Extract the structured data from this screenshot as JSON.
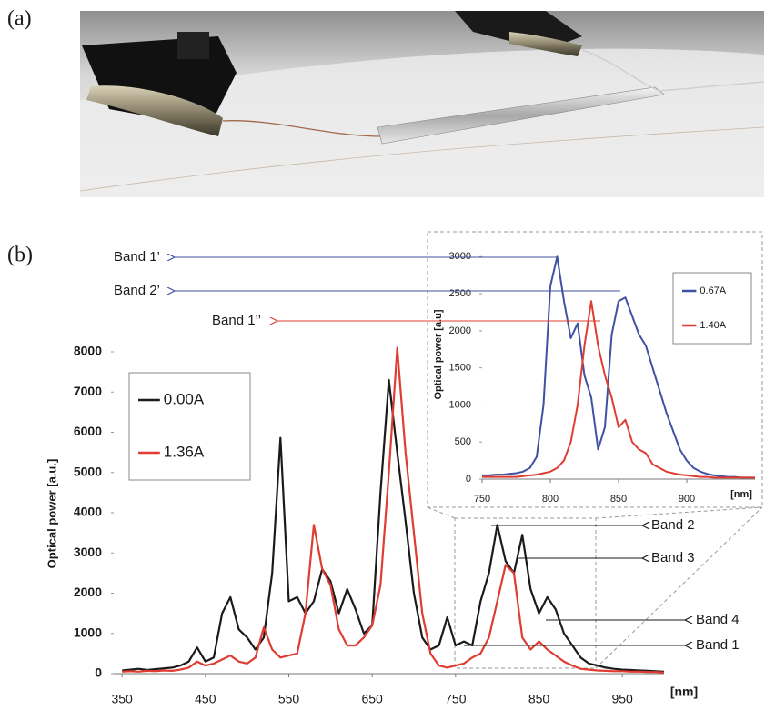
{
  "panels": {
    "a": "(a)",
    "b": "(b)"
  },
  "chart_data": [
    {
      "type": "line",
      "ylabel": "Optical power [a.u.]",
      "xlabel": "[nm]",
      "x": [
        350,
        360,
        370,
        380,
        390,
        400,
        410,
        420,
        430,
        440,
        450,
        460,
        470,
        480,
        490,
        500,
        510,
        520,
        530,
        540,
        550,
        560,
        570,
        580,
        590,
        600,
        610,
        620,
        630,
        640,
        650,
        660,
        670,
        680,
        690,
        700,
        710,
        720,
        730,
        740,
        750,
        760,
        770,
        780,
        790,
        800,
        810,
        820,
        830,
        840,
        850,
        860,
        870,
        880,
        890,
        900,
        910,
        920,
        930,
        940,
        950,
        960,
        970,
        980,
        990,
        1000
      ],
      "series": [
        {
          "name": "0.00A",
          "color": "#1a1a1a",
          "values": [
            80,
            100,
            120,
            90,
            110,
            130,
            150,
            200,
            300,
            650,
            300,
            400,
            1500,
            1900,
            1100,
            900,
            600,
            900,
            2500,
            5860,
            1800,
            1900,
            1500,
            1800,
            2600,
            2300,
            1500,
            2100,
            1600,
            1000,
            1200,
            4500,
            7300,
            5500,
            3800,
            2000,
            900,
            600,
            700,
            1400,
            700,
            800,
            700,
            1800,
            2500,
            3700,
            2800,
            2500,
            3450,
            2100,
            1500,
            1900,
            1600,
            1000,
            700,
            400,
            250,
            200,
            150,
            120,
            100,
            90,
            80,
            70,
            60,
            50
          ]
        },
        {
          "name": "1.36A",
          "color": "#e03c31",
          "values": [
            50,
            60,
            50,
            70,
            60,
            80,
            70,
            100,
            150,
            300,
            200,
            250,
            350,
            450,
            300,
            250,
            400,
            1150,
            600,
            400,
            450,
            500,
            1500,
            3700,
            2600,
            2200,
            1100,
            700,
            700,
            900,
            1200,
            2200,
            5000,
            8100,
            5500,
            3500,
            1500,
            500,
            200,
            150,
            200,
            250,
            400,
            500,
            900,
            1800,
            2700,
            2500,
            900,
            600,
            800,
            600,
            450,
            300,
            200,
            120,
            100,
            80,
            70,
            60,
            60,
            50,
            50,
            40,
            40,
            30
          ]
        }
      ],
      "xlim": [
        340,
        1000
      ],
      "ylim": [
        0,
        8000
      ],
      "xticks": [
        350,
        450,
        550,
        650,
        750,
        850,
        950
      ],
      "yticks": [
        0,
        1000,
        2000,
        3000,
        4000,
        5000,
        6000,
        7000,
        8000
      ],
      "legend": "upper-left",
      "annotations": [
        {
          "text": "Band 1’",
          "color": "#3f51a3"
        },
        {
          "text": "Band 2’",
          "color": "#3f51a3"
        },
        {
          "text": "Band 1’’",
          "color": "#e03c31"
        },
        {
          "text": "Band 2",
          "color": "#1a1a1a"
        },
        {
          "text": "Band 3",
          "color": "#1a1a1a"
        },
        {
          "text": "Band 4",
          "color": "#1a1a1a"
        },
        {
          "text": "Band 1",
          "color": "#1a1a1a"
        }
      ]
    },
    {
      "type": "line",
      "ylabel": "Optical power [a.u]",
      "xlabel": "[nm]",
      "x": [
        750,
        755,
        760,
        765,
        770,
        775,
        780,
        785,
        790,
        795,
        800,
        805,
        810,
        815,
        820,
        825,
        830,
        835,
        840,
        845,
        850,
        855,
        860,
        865,
        870,
        875,
        880,
        885,
        890,
        895,
        900,
        905,
        910,
        915,
        920,
        925,
        930,
        935,
        940,
        945,
        950
      ],
      "series": [
        {
          "name": "0.67A",
          "color": "#3f51a3",
          "values": [
            50,
            50,
            60,
            60,
            70,
            80,
            100,
            150,
            300,
            1000,
            2600,
            3000,
            2400,
            1900,
            2100,
            1400,
            1100,
            400,
            700,
            1950,
            2400,
            2450,
            2200,
            1950,
            1800,
            1500,
            1200,
            900,
            650,
            400,
            250,
            150,
            100,
            70,
            50,
            40,
            30,
            30,
            20,
            20,
            20
          ]
        },
        {
          "name": "1.40A",
          "color": "#e03c31",
          "values": [
            30,
            30,
            30,
            30,
            30,
            30,
            40,
            50,
            60,
            80,
            100,
            150,
            250,
            500,
            1000,
            1800,
            2400,
            1800,
            1400,
            1100,
            700,
            800,
            500,
            400,
            350,
            200,
            150,
            100,
            80,
            60,
            50,
            40,
            30,
            30,
            20,
            20,
            20,
            20,
            20,
            20,
            20
          ]
        }
      ],
      "xlim": [
        750,
        950
      ],
      "ylim": [
        0,
        3200
      ],
      "xticks": [
        750,
        800,
        850,
        900
      ],
      "yticks": [
        0,
        500,
        1000,
        1500,
        2000,
        2500,
        3000
      ],
      "legend": "upper-right"
    }
  ]
}
